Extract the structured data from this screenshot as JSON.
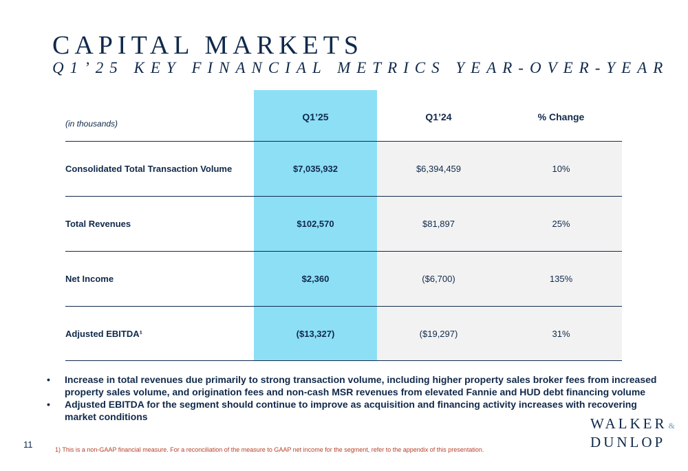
{
  "title": "CAPITAL MARKETS",
  "subtitle": "Q1’25 KEY FINANCIAL METRICS YEAR-OVER-YEAR",
  "table": {
    "unit_label": "(in thousands)",
    "headers": [
      "Q1’25",
      "Q1’24",
      "% Change"
    ],
    "rows": [
      {
        "label": "Consolidated Total Transaction Volume",
        "q125": "$7,035,932",
        "q124": "$6,394,459",
        "change": "10%"
      },
      {
        "label": "Total Revenues",
        "q125": "$102,570",
        "q124": "$81,897",
        "change": "25%"
      },
      {
        "label": "Net Income",
        "q125": "$2,360",
        "q124": "($6,700)",
        "change": "135%"
      },
      {
        "label": "Adjusted EBITDA¹",
        "q125": "($13,327)",
        "q124": "($19,297)",
        "change": "31%"
      }
    ]
  },
  "bullets": [
    "Increase in total revenues due primarily to strong transaction volume, including higher property sales broker fees from increased property sales volume, and origination fees and non-cash MSR revenues from elevated Fannie and HUD debt financing volume",
    "Adjusted EBITDA for the segment should continue to improve as acquisition and financing activity increases with recovering market conditions"
  ],
  "bullet_symbol": "•",
  "logo": {
    "line1": "WALKER",
    "amp": "&",
    "line2": "DUNLOP"
  },
  "page_number": "11",
  "footnote": "1) This is a non-GAAP financial measure. For a reconciliation of the measure to GAAP net income for the segment, refer to the appendix of this presentation.",
  "colors": {
    "navy": "#10294a",
    "highlight": "#8ddff6",
    "row_bg": "#f2f2f2",
    "footnote": "#b5402a"
  }
}
